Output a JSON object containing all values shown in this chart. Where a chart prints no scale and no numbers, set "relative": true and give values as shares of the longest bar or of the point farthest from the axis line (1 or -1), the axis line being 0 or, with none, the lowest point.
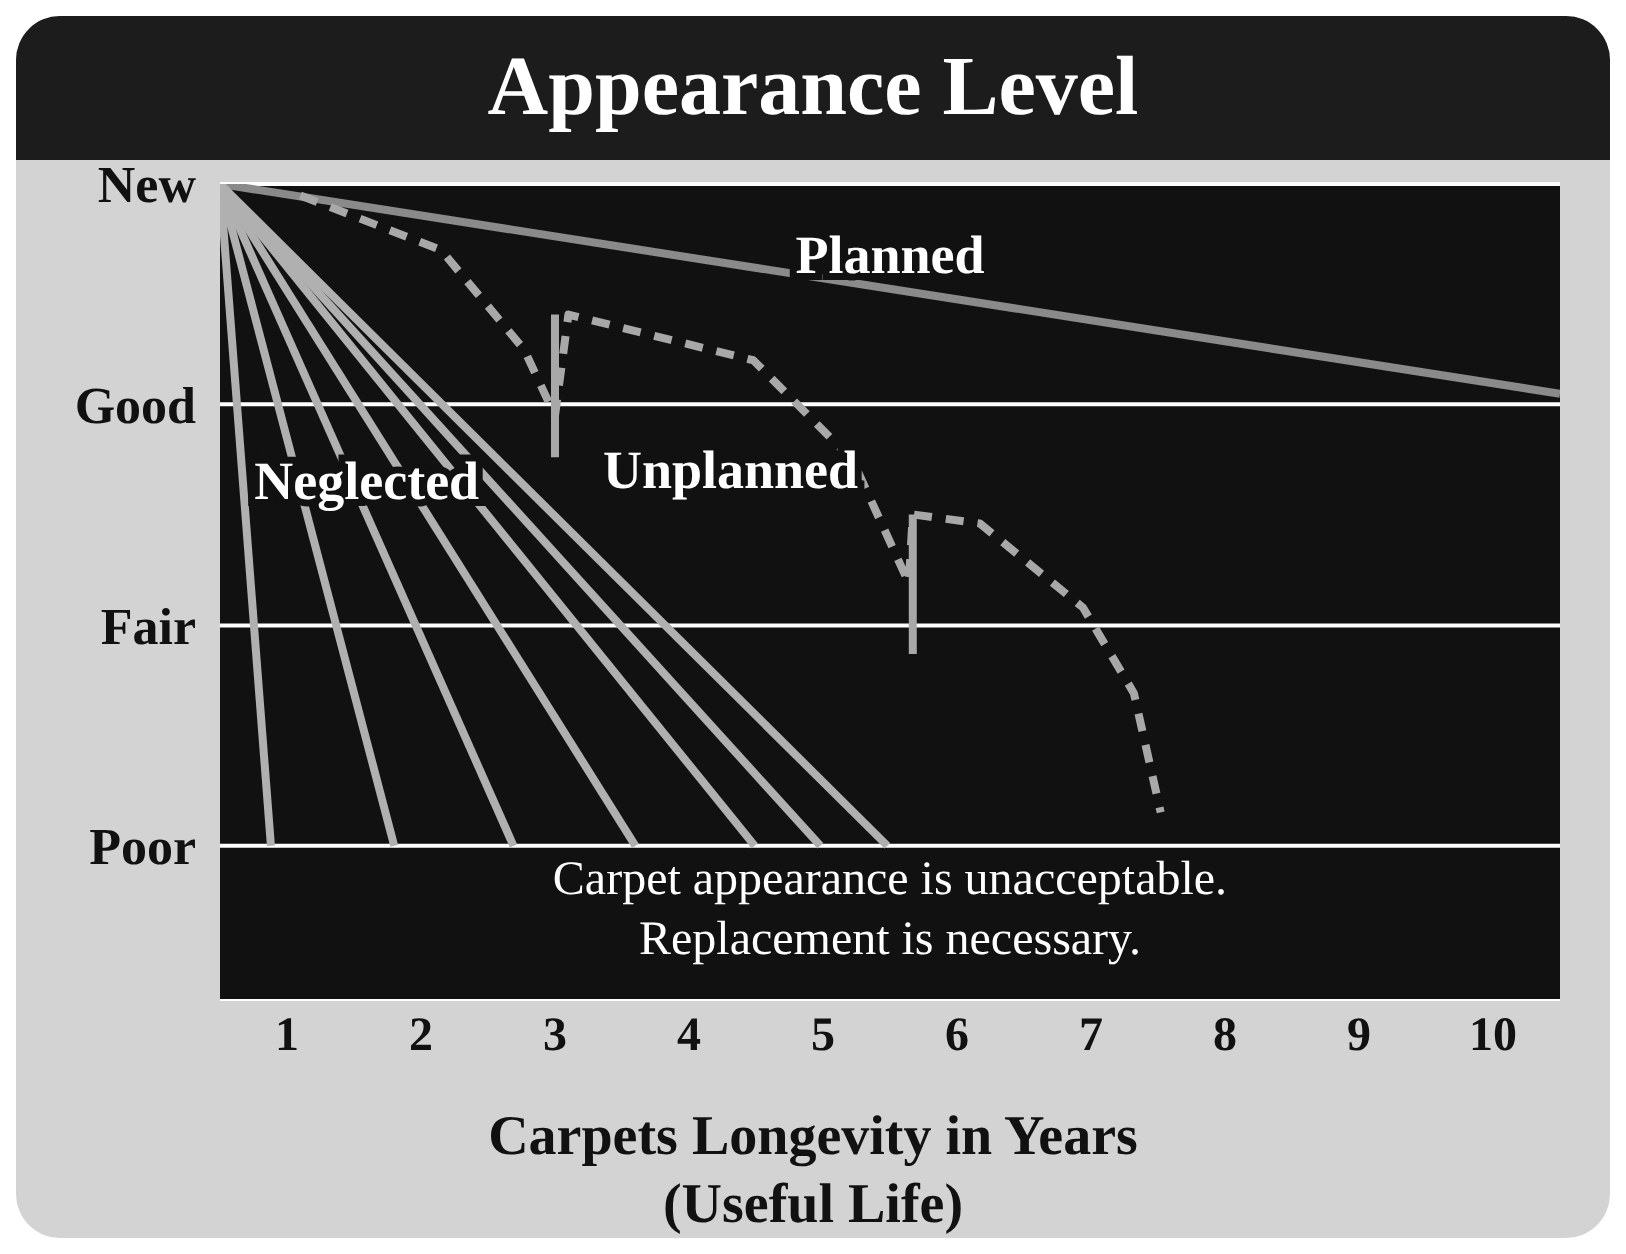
{
  "chart_data": {
    "type": "line",
    "title": "Appearance Level",
    "xlabel": "Carpets Longevity in Years\n(Useful Life)",
    "annotations": [
      "Carpet appearance is unacceptable.\nReplacement is necessary."
    ],
    "relative": true,
    "xlim": [
      0,
      10
    ],
    "xticks": [
      {
        "value": 0.5,
        "label": "1"
      },
      {
        "value": 1.5,
        "label": "2"
      },
      {
        "value": 2.5,
        "label": "3"
      },
      {
        "value": 3.5,
        "label": "4"
      },
      {
        "value": 4.5,
        "label": "5"
      },
      {
        "value": 5.5,
        "label": "6"
      },
      {
        "value": 6.5,
        "label": "7"
      },
      {
        "value": 7.5,
        "label": "8"
      },
      {
        "value": 8.5,
        "label": "9"
      },
      {
        "value": 9.5,
        "label": "10"
      }
    ],
    "ref_lines": [
      {
        "axis": "y",
        "value": 1,
        "label": "New",
        "color": "#ffffff"
      },
      {
        "axis": "y",
        "value": 0.73,
        "label": "Good",
        "color": "#ffffff"
      },
      {
        "axis": "y",
        "value": 0.459,
        "label": "Fair",
        "color": "#ffffff"
      },
      {
        "axis": "y",
        "value": 0.189,
        "label": "Poor",
        "color": "#ffffff"
      }
    ],
    "marker": "none",
    "series": [
      {
        "name": "Planned",
        "color": "#8a8a8a",
        "x": [
          0,
          10
        ],
        "values": [
          1,
          0.743
        ],
        "line_style": "solid"
      },
      {
        "name": "Unplanned",
        "color": "#a8a8a8",
        "x": [
          0.6,
          1.65,
          2.27,
          2.5,
          2.6,
          3.98,
          4.72,
          5.14,
          5.17,
          5.67,
          6.44,
          6.82,
          7.02
        ],
        "values": [
          0.986,
          0.919,
          0.797,
          0.716,
          0.84,
          0.784,
          0.662,
          0.511,
          0.595,
          0.584,
          0.481,
          0.376,
          0.23
        ],
        "line_style": "dashed"
      },
      {
        "color": "#a8a8a8",
        "x": [
          2.5,
          2.5
        ],
        "values": [
          0.84,
          0.665
        ],
        "line_style": "solid"
      },
      {
        "color": "#a8a8a8",
        "x": [
          5.17,
          5.17
        ],
        "values": [
          0.595,
          0.424
        ],
        "line_style": "solid"
      },
      {
        "color": "#b0b0b0",
        "x": [
          0,
          0.38
        ],
        "values": [
          1,
          0.189
        ],
        "line_style": "solid"
      },
      {
        "color": "#b0b0b0",
        "x": [
          0,
          1.3
        ],
        "values": [
          1,
          0.189
        ],
        "line_style": "solid"
      },
      {
        "name": "Neglected",
        "color": "#b0b0b0",
        "x": [
          0,
          2.19
        ],
        "values": [
          1,
          0.189
        ],
        "line_style": "solid"
      },
      {
        "color": "#b0b0b0",
        "x": [
          0,
          3.1
        ],
        "values": [
          1,
          0.189
        ],
        "line_style": "solid"
      },
      {
        "color": "#b0b0b0",
        "x": [
          0,
          3.99
        ],
        "values": [
          1,
          0.189
        ],
        "line_style": "solid"
      },
      {
        "color": "#b0b0b0",
        "x": [
          0,
          4.48
        ],
        "values": [
          1,
          0.189
        ],
        "line_style": "solid"
      },
      {
        "color": "#b0b0b0",
        "x": [
          0,
          4.98
        ],
        "values": [
          1,
          0.189
        ],
        "line_style": "solid"
      }
    ]
  }
}
